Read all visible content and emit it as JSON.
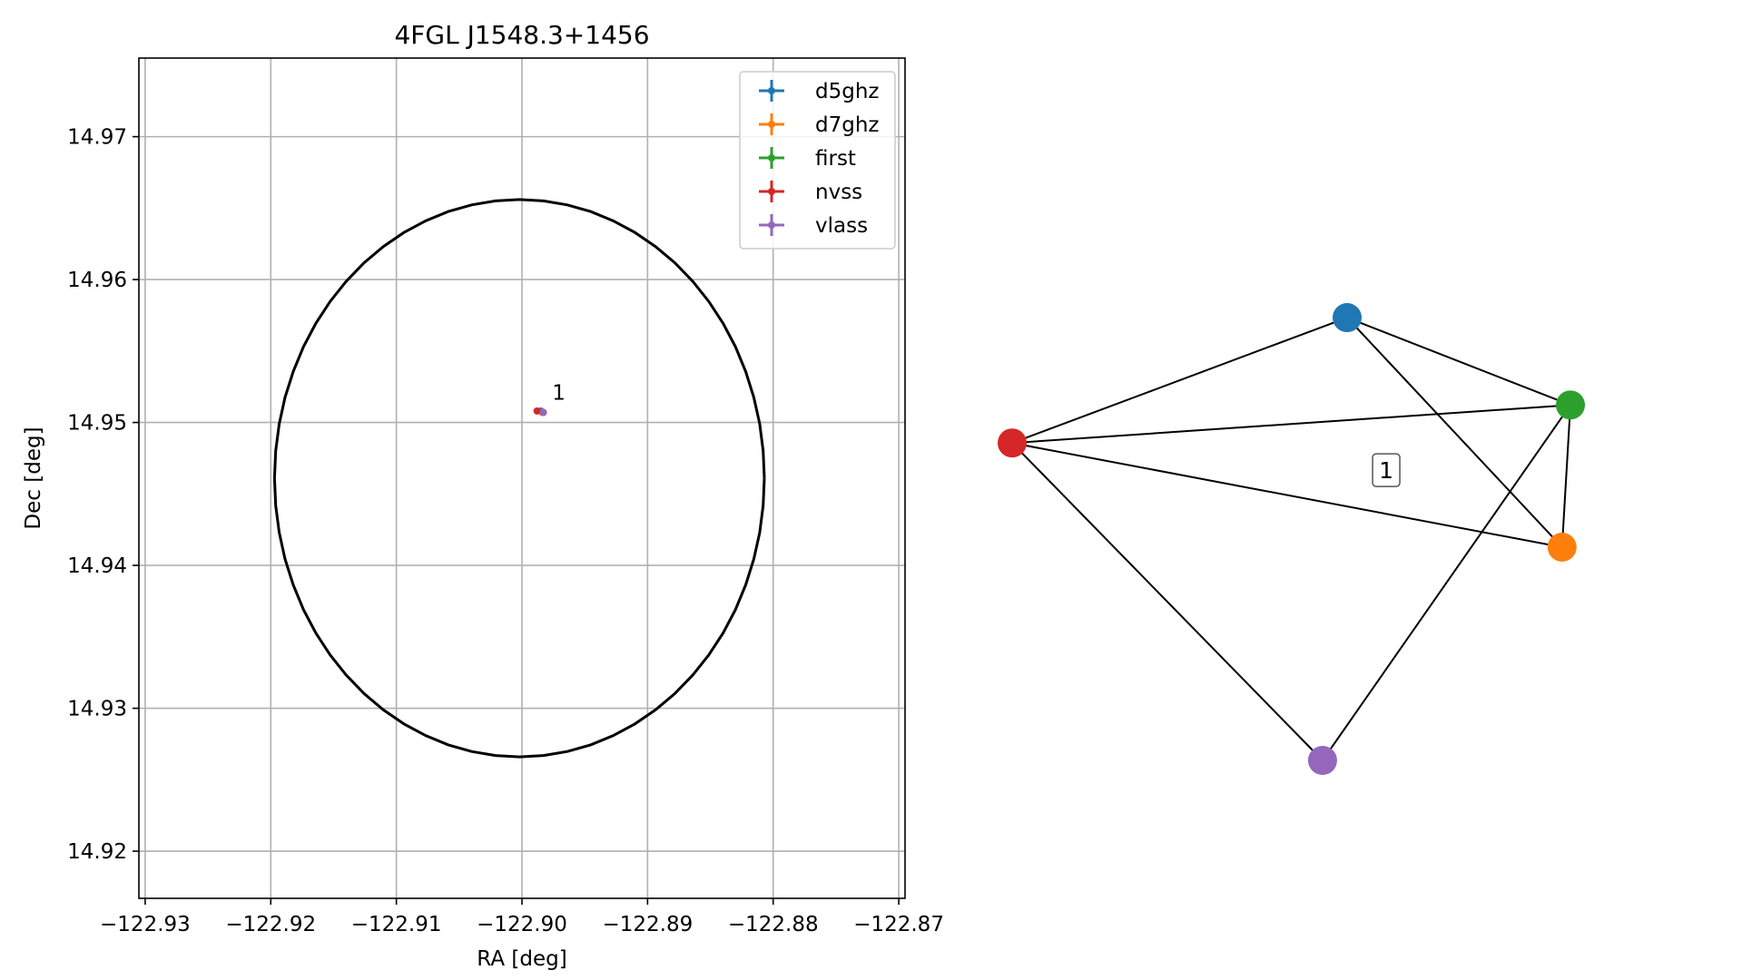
{
  "chart_data": [
    {
      "type": "scatter",
      "title": "4FGL J1548.3+1456",
      "xlabel": "RA [deg]",
      "ylabel": "Dec [deg]",
      "xlim": [
        -122.9305,
        -122.8695
      ],
      "ylim": [
        14.9167,
        14.9755
      ],
      "xticks": [
        -122.93,
        -122.92,
        -122.91,
        -122.9,
        -122.89,
        -122.88,
        -122.87
      ],
      "xtick_labels": [
        "−122.93",
        "−122.92",
        "−122.91",
        "−122.90",
        "−122.89",
        "−122.88",
        "−122.87"
      ],
      "yticks": [
        14.92,
        14.93,
        14.94,
        14.95,
        14.96,
        14.97
      ],
      "ytick_labels": [
        "14.92",
        "14.93",
        "14.94",
        "14.95",
        "14.96",
        "14.97"
      ],
      "grid": true,
      "legend_position": "top-right",
      "series": [
        {
          "name": "d5ghz",
          "color": "#1f77b4",
          "x": [
            -122.8985
          ],
          "y": [
            14.9508
          ]
        },
        {
          "name": "d7ghz",
          "color": "#ff7f0e",
          "x": [
            -122.8984
          ],
          "y": [
            14.9507
          ]
        },
        {
          "name": "first",
          "color": "#2ca02c",
          "x": [
            -122.8983
          ],
          "y": [
            14.9507
          ]
        },
        {
          "name": "nvss",
          "color": "#d62728",
          "x": [
            -122.8988
          ],
          "y": [
            14.9508
          ]
        },
        {
          "name": "vlass",
          "color": "#9467bd",
          "x": [
            -122.8983
          ],
          "y": [
            14.9507
          ]
        }
      ],
      "ellipse": {
        "color": "#000000",
        "center": [
          -122.9002,
          14.9461
        ],
        "semi_axis_ra": 0.0195,
        "semi_axis_dec": 0.0195
      },
      "annotations": [
        {
          "text": "1",
          "x": -122.8976,
          "y": 14.9512
        }
      ]
    },
    {
      "type": "network",
      "nodes": [
        {
          "name": "d5ghz",
          "color": "#1f77b4",
          "x": 0.6,
          "y": 0.897
        },
        {
          "name": "d7ghz",
          "color": "#ff7f0e",
          "x": 0.985,
          "y": 0.432
        },
        {
          "name": "first",
          "color": "#2ca02c",
          "x": 1.0,
          "y": 0.72
        },
        {
          "name": "nvss",
          "color": "#d62728",
          "x": 0.0,
          "y": 0.643
        },
        {
          "name": "vlass",
          "color": "#9467bd",
          "x": 0.556,
          "y": 0.0
        }
      ],
      "edges": [
        [
          "d5ghz",
          "first"
        ],
        [
          "d5ghz",
          "d7ghz"
        ],
        [
          "d5ghz",
          "nvss"
        ],
        [
          "nvss",
          "first"
        ],
        [
          "nvss",
          "d7ghz"
        ],
        [
          "nvss",
          "vlass"
        ],
        [
          "first",
          "d7ghz"
        ],
        [
          "first",
          "vlass"
        ]
      ],
      "cluster_label": {
        "text": "1",
        "x": 0.67,
        "y": 0.588
      }
    }
  ]
}
